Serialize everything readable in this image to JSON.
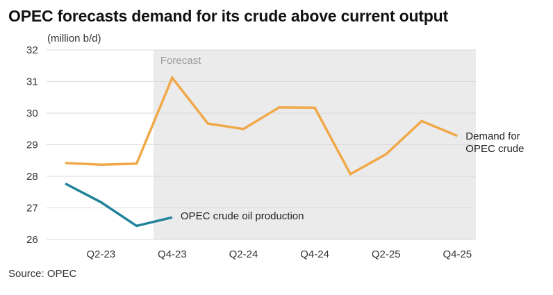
{
  "chart_data": {
    "type": "line",
    "title": "OPEC forecasts demand for its crude above current output",
    "ylabel": "(million b/d)",
    "xlabel": "",
    "ylim": [
      26,
      32
    ],
    "yticks": [
      26,
      27,
      28,
      29,
      30,
      31,
      32
    ],
    "categories": [
      "Q1-23",
      "Q2-23",
      "Q3-23",
      "Q4-23",
      "Q1-24",
      "Q2-24",
      "Q3-24",
      "Q4-24",
      "Q1-25",
      "Q2-25",
      "Q3-25",
      "Q4-25"
    ],
    "xtick_labels": [
      "Q2-23",
      "Q4-23",
      "Q2-24",
      "Q4-24",
      "Q2-25",
      "Q4-25"
    ],
    "forecast_label": "Forecast",
    "forecast_start": "Q4-23",
    "grid": true,
    "series": [
      {
        "name": "Demand for OPEC crude",
        "label_lines": [
          "Demand for",
          "OPEC crude"
        ],
        "color": "#F0A848",
        "values": [
          28.42,
          28.37,
          28.4,
          31.12,
          29.67,
          29.5,
          30.18,
          30.17,
          28.07,
          28.7,
          29.75,
          29.28
        ]
      },
      {
        "name": "OPEC crude oil production",
        "label_lines": [
          "OPEC crude oil production"
        ],
        "color": "#218299",
        "values": [
          27.77,
          27.18,
          26.43,
          26.7,
          null,
          null,
          null,
          null,
          null,
          null,
          null,
          null
        ]
      }
    ]
  },
  "source": "Source: OPEC",
  "colors": {
    "forecast_band": "#EBEBEB",
    "grid": "#DADADA"
  }
}
